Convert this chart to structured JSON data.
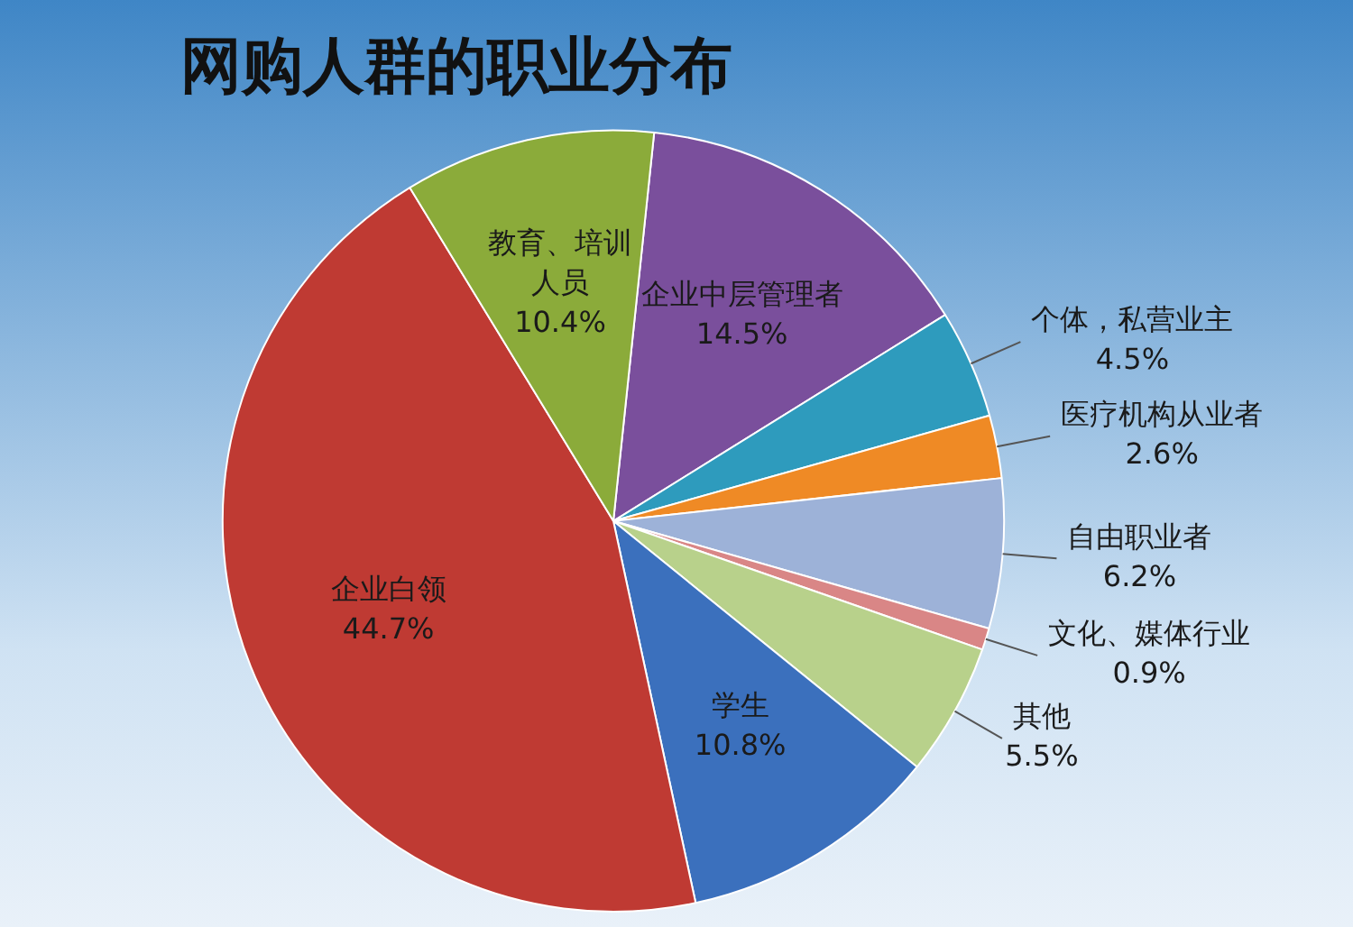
{
  "chart_data": {
    "type": "pie",
    "title": "网购人群的职业分布",
    "categories": [
      "企业中层管理者",
      "个体，私营业主",
      "医疗机构从业者",
      "自由职业者",
      "文化、媒体行业",
      "其他",
      "学生",
      "企业白领",
      "教育、培训人员"
    ],
    "values": [
      14.5,
      4.5,
      2.6,
      6.2,
      0.9,
      5.5,
      10.8,
      44.7,
      10.4
    ],
    "colors": [
      "#7a4f9c",
      "#2e9bbd",
      "#ef8a25",
      "#9db2d8",
      "#d98686",
      "#b8d18b",
      "#3b70bd",
      "#bf3a33",
      "#8bab3a"
    ],
    "value_labels": [
      "14.5%",
      "4.5%",
      "2.6%",
      "6.2%",
      "0.9%",
      "5.5%",
      "10.8%",
      "44.7%",
      "10.4%"
    ],
    "legend": false
  }
}
